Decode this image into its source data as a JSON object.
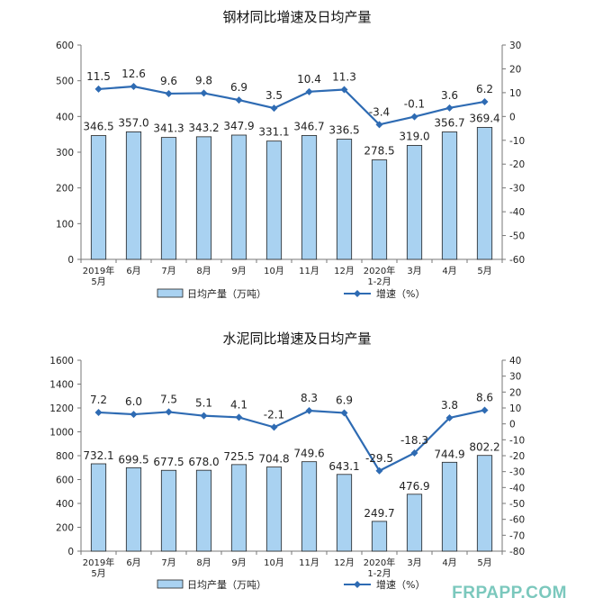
{
  "watermark": "FRPAPP.COM",
  "legend": {
    "bar": "日均产量（万吨）",
    "line": "增速（%）"
  },
  "chart_data": [
    {
      "type": "bar",
      "title": "钢材同比增速及日均产量",
      "categories": [
        "2019年\n5月",
        "6月",
        "7月",
        "8月",
        "9月",
        "10月",
        "11月",
        "12月",
        "2020年\n1-2月",
        "3月",
        "4月",
        "5月"
      ],
      "series": [
        {
          "name": "日均产量（万吨）",
          "type": "bar",
          "axis": "left",
          "values": [
            346.5,
            357.0,
            341.3,
            343.2,
            347.9,
            331.1,
            346.7,
            336.5,
            278.5,
            319.0,
            356.7,
            369.4
          ]
        },
        {
          "name": "增速（%）",
          "type": "line",
          "axis": "right",
          "values": [
            11.5,
            12.6,
            9.6,
            9.8,
            6.9,
            3.5,
            10.4,
            11.3,
            -3.4,
            -0.1,
            3.6,
            6.2
          ]
        }
      ],
      "ylim": [
        0,
        600
      ],
      "yticks": [
        0,
        100,
        200,
        300,
        400,
        500,
        600
      ],
      "y2lim": [
        -60,
        30
      ],
      "y2ticks": [
        30,
        20,
        10,
        0,
        -10,
        -20,
        -30,
        -40,
        -50,
        -60
      ],
      "grid": false
    },
    {
      "type": "bar",
      "title": "水泥同比增速及日均产量",
      "categories": [
        "2019年\n5月",
        "6月",
        "7月",
        "8月",
        "9月",
        "10月",
        "11月",
        "12月",
        "2020年\n1-2月",
        "3月",
        "4月",
        "5月"
      ],
      "series": [
        {
          "name": "日均产量（万吨）",
          "type": "bar",
          "axis": "left",
          "values": [
            732.1,
            699.5,
            677.5,
            678.0,
            725.5,
            704.8,
            749.6,
            643.1,
            249.7,
            476.9,
            744.9,
            802.2
          ]
        },
        {
          "name": "增速（%）",
          "type": "line",
          "axis": "right",
          "values": [
            7.2,
            6.0,
            7.5,
            5.1,
            4.1,
            -2.1,
            8.3,
            6.9,
            -29.5,
            -18.3,
            3.8,
            8.6
          ]
        }
      ],
      "ylim": [
        0,
        1600
      ],
      "yticks": [
        0,
        200,
        400,
        600,
        800,
        1000,
        1200,
        1400,
        1600
      ],
      "y2lim": [
        -80,
        40
      ],
      "y2ticks": [
        40,
        30,
        20,
        10,
        0,
        -10,
        -20,
        -30,
        -40,
        -50,
        -60,
        -70,
        -80
      ],
      "grid": false
    }
  ]
}
